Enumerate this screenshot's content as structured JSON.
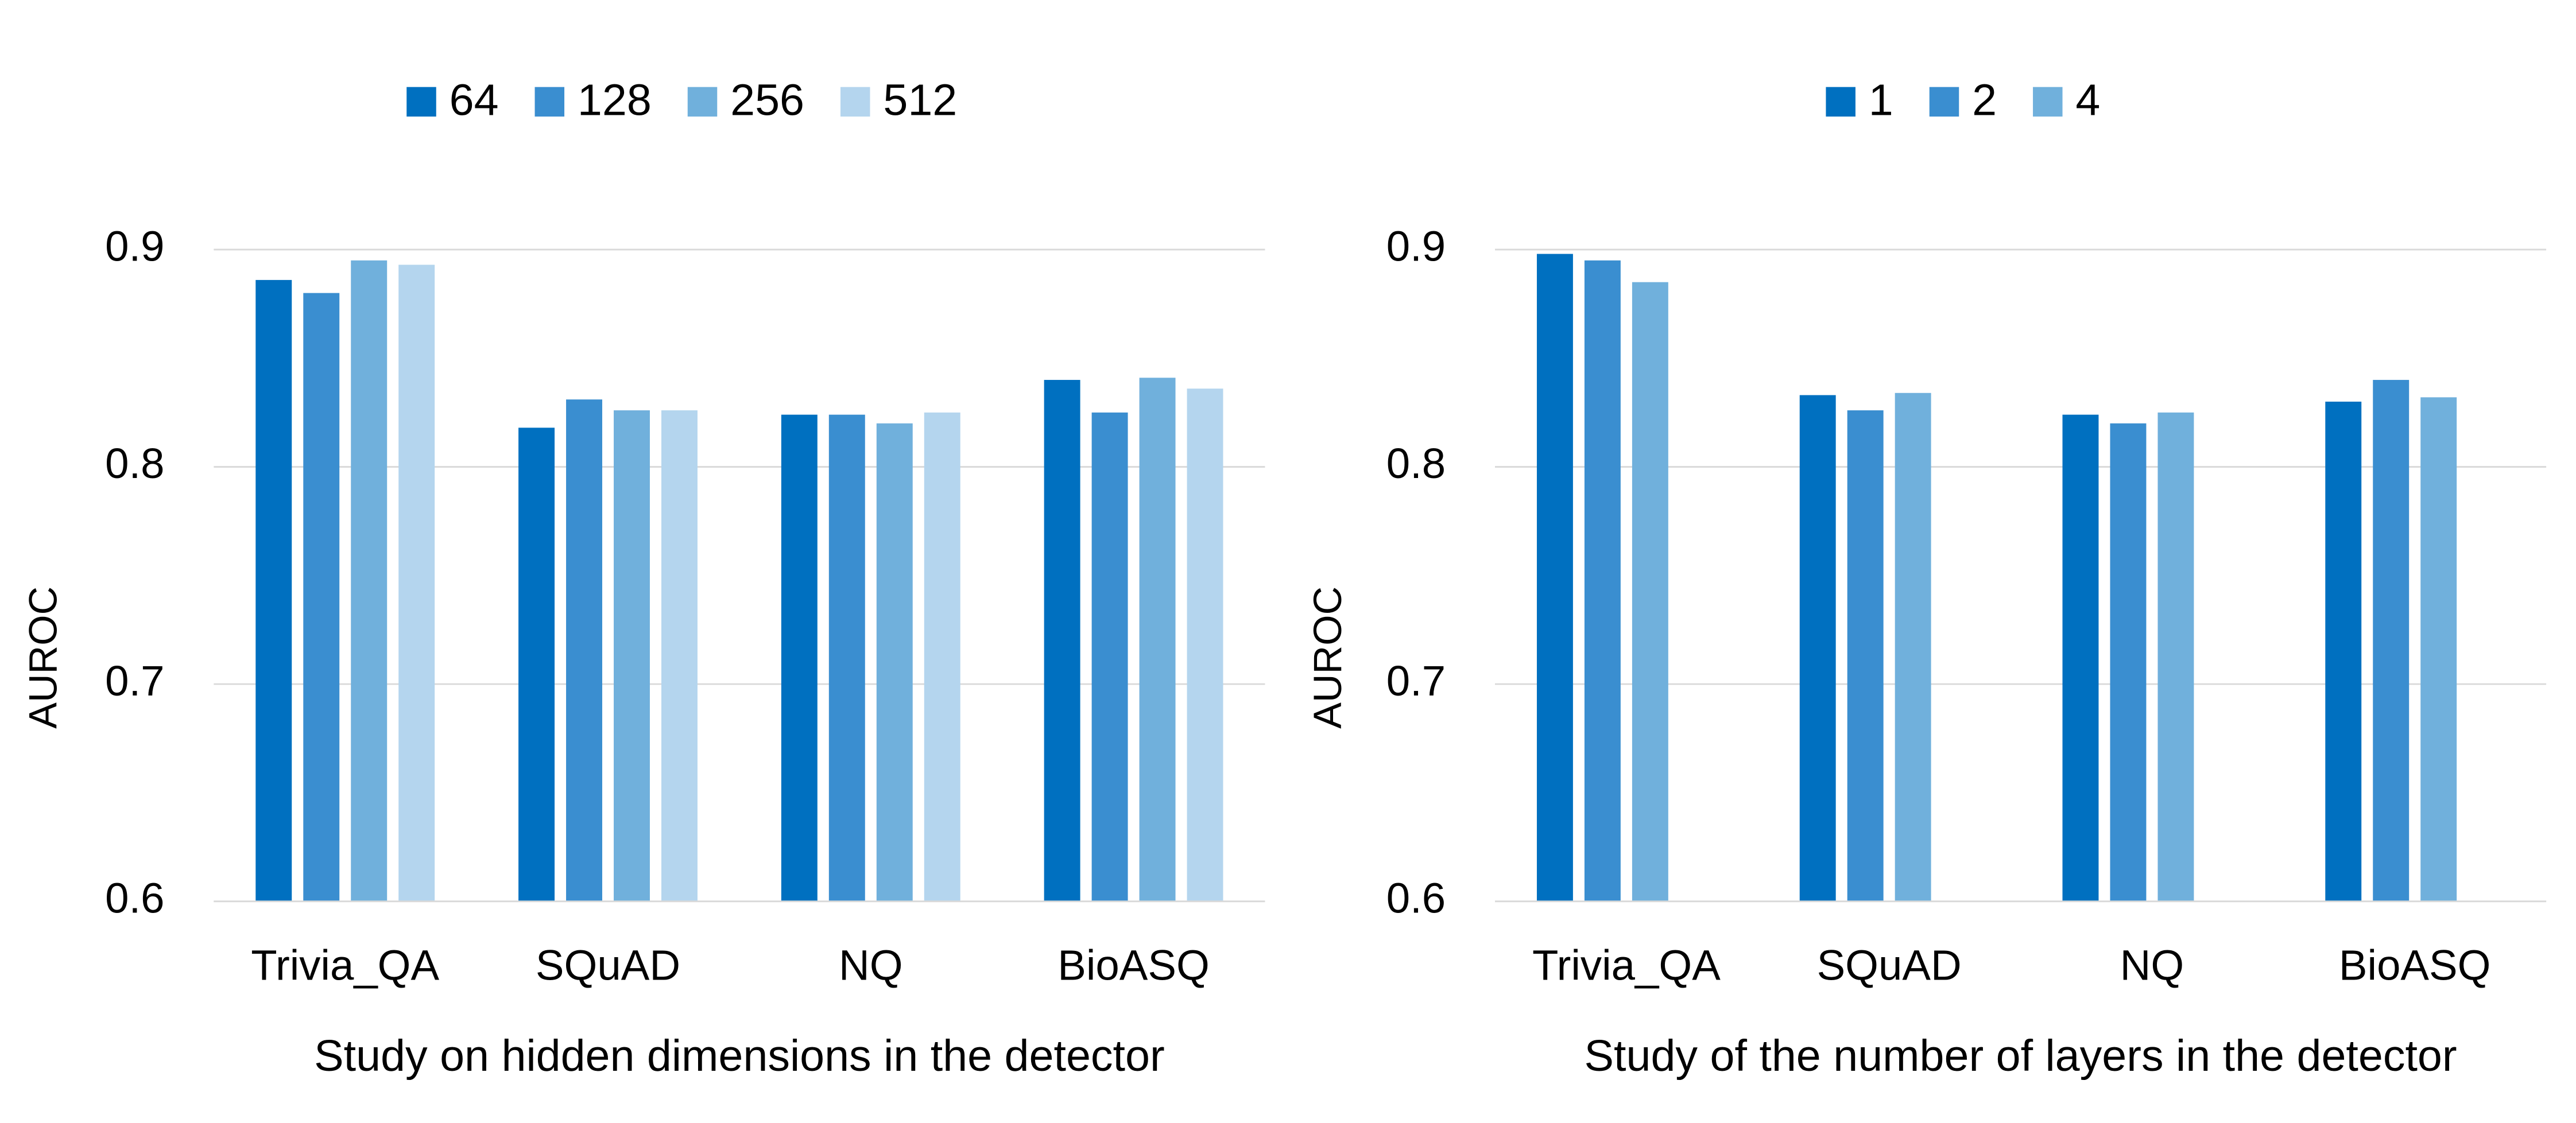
{
  "chart_data": [
    {
      "type": "bar",
      "xlabel": "Study on hidden dimensions in the detector",
      "ylabel": "AUROC",
      "categories": [
        "Trivia_QA",
        "SQuAD",
        "NQ",
        "BioASQ"
      ],
      "series": [
        {
          "name": "64",
          "color": "#0070c0",
          "values": [
            0.886,
            0.818,
            0.824,
            0.84
          ]
        },
        {
          "name": "128",
          "color": "#3a8ed0",
          "values": [
            0.88,
            0.831,
            0.824,
            0.825
          ]
        },
        {
          "name": "256",
          "color": "#70b0dc",
          "values": [
            0.895,
            0.826,
            0.82,
            0.841
          ]
        },
        {
          "name": "512",
          "color": "#b4d5ee",
          "values": [
            0.893,
            0.826,
            0.825,
            0.836
          ]
        }
      ],
      "ylim": [
        0.6,
        0.9
      ],
      "yticks": [
        0.6,
        0.7,
        0.8,
        0.9
      ],
      "grid": true,
      "legend": "top"
    },
    {
      "type": "bar",
      "xlabel": "Study of the number of layers in the detector",
      "ylabel": "AUROC",
      "categories": [
        "Trivia_QA",
        "SQuAD",
        "NQ",
        "BioASQ"
      ],
      "series": [
        {
          "name": "1",
          "color": "#0070c0",
          "values": [
            0.898,
            0.833,
            0.824,
            0.83
          ]
        },
        {
          "name": "2",
          "color": "#3a8ed0",
          "values": [
            0.895,
            0.826,
            0.82,
            0.84
          ]
        },
        {
          "name": "4",
          "color": "#70b0dc",
          "values": [
            0.885,
            0.834,
            0.825,
            0.832
          ]
        }
      ],
      "ylim": [
        0.6,
        0.9
      ],
      "yticks": [
        0.6,
        0.7,
        0.8,
        0.9
      ],
      "grid": true,
      "legend": "top"
    }
  ]
}
